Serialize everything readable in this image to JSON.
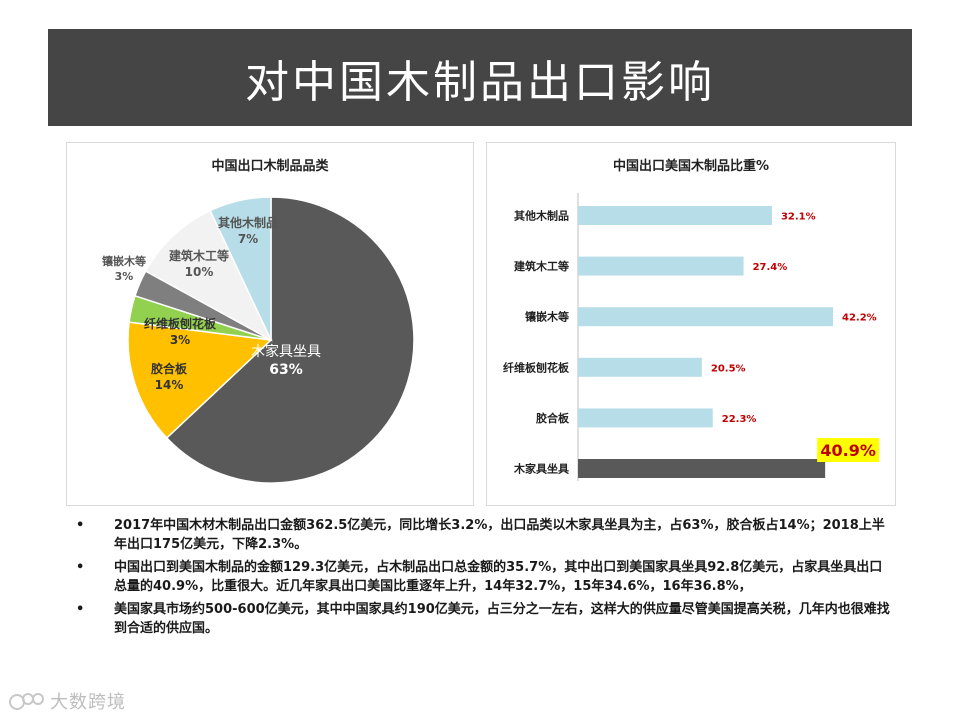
{
  "page": {
    "title": "对中国木制品出口影响"
  },
  "chart_data": [
    {
      "type": "pie",
      "title": "中国出口木制品品类",
      "categories": [
        "木家具坐具",
        "胶合板",
        "纤维板刨花板",
        "镶嵌木等",
        "建筑木工等",
        "其他木制品"
      ],
      "values": [
        63,
        14,
        3,
        3,
        10,
        7
      ],
      "labels": [
        "63%",
        "14%",
        "3%",
        "3%",
        "10%",
        "7%"
      ],
      "colors": [
        "#595959",
        "#ffc000",
        "#92d050",
        "#7f7f7f",
        "#f2f2f2",
        "#b7dee8"
      ]
    },
    {
      "type": "bar",
      "orientation": "horizontal",
      "title": "中国出口美国木制品比重%",
      "categories": [
        "其他木制品",
        "建筑木工等",
        "镶嵌木等",
        "纤维板刨花板",
        "胶合板",
        "木家具坐具"
      ],
      "values": [
        32.1,
        27.4,
        42.2,
        20.5,
        22.3,
        40.9
      ],
      "labels": [
        "32.1%",
        "27.4%",
        "42.2%",
        "20.5%",
        "22.3%",
        "40.9%"
      ],
      "highlight_index": 5,
      "colors": {
        "bar": "#b7dee8",
        "highlight_bar": "#595959",
        "label": "#c00000",
        "highlight_bg": "#ffff00"
      }
    }
  ],
  "bullets": [
    "2017年中国木材木制品出口金额362.5亿美元，同比增长3.2%，出口品类以木家具坐具为主，占63%，胶合板占14%；2018上半年出口175亿美元，下降2.3%。",
    "中国出口到美国木制品的金额129.3亿美元，占木制品出口总金额的35.7%，其中出口到美国家具坐具92.8亿美元，占家具坐具出口总量的40.9%，比重很大。近几年家具出口美国比重逐年上升，14年32.7%，15年34.6%，16年36.8%，",
    "美国家具市场约500-600亿美元，其中中国家具约190亿美元，占三分之一左右，这样大的供应量尽管美国提高关税，几年内也很难找到合适的供应国。"
  ],
  "bullet_marker": "•",
  "watermark": {
    "text": "大数跨境"
  }
}
